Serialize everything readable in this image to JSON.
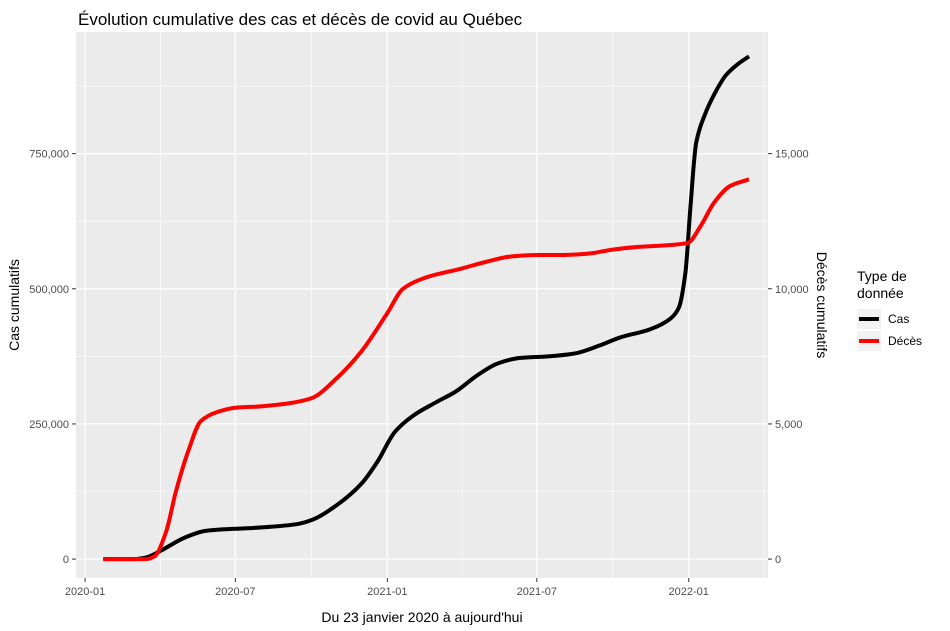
{
  "chart_data": {
    "type": "line",
    "title": "Évolution cumulative des cas et décès de covid au Québec",
    "xlabel": "Du 23 janvier 2020 à aujourd'hui",
    "ylabel": "Cas cumulatifs",
    "ylabel_right": "Décès cumulatifs",
    "x_ticks": [
      "2020-01",
      "2020-07",
      "2021-01",
      "2021-07",
      "2022-01"
    ],
    "y_ticks": [
      "0",
      "250,000",
      "500,000",
      "750,000"
    ],
    "y_right_ticks": [
      "0",
      "5,000",
      "10,000",
      "15,000"
    ],
    "ylim": [
      -35000,
      975000
    ],
    "ylim_right": [
      -700,
      19500
    ],
    "xlim": [
      "2019-12-21",
      "2022-04-07"
    ],
    "grid": true,
    "legend": {
      "title": "Type de donnée",
      "title_lines": [
        "Type de",
        "donnée"
      ],
      "position": "right",
      "entries": [
        "Cas",
        "Décès"
      ]
    },
    "series": [
      {
        "name": "Cas",
        "axis": "left",
        "color": "#000000",
        "points": [
          [
            "2020-01-23",
            0
          ],
          [
            "2020-03-01",
            0
          ],
          [
            "2020-03-15",
            3000
          ],
          [
            "2020-04-01",
            15000
          ],
          [
            "2020-05-01",
            40000
          ],
          [
            "2020-05-25",
            52000
          ],
          [
            "2020-06-15",
            55000
          ],
          [
            "2020-07-15",
            57000
          ],
          [
            "2020-08-15",
            60000
          ],
          [
            "2020-09-15",
            65000
          ],
          [
            "2020-10-01",
            72000
          ],
          [
            "2020-11-01",
            100000
          ],
          [
            "2020-12-01",
            140000
          ],
          [
            "2020-12-20",
            180000
          ],
          [
            "2021-01-10",
            235000
          ],
          [
            "2021-02-01",
            265000
          ],
          [
            "2021-03-01",
            290000
          ],
          [
            "2021-03-25",
            310000
          ],
          [
            "2021-04-20",
            340000
          ],
          [
            "2021-05-15",
            362000
          ],
          [
            "2021-06-10",
            372000
          ],
          [
            "2021-07-15",
            375000
          ],
          [
            "2021-08-15",
            380000
          ],
          [
            "2021-09-15",
            395000
          ],
          [
            "2021-10-10",
            410000
          ],
          [
            "2021-11-15",
            425000
          ],
          [
            "2021-12-10",
            445000
          ],
          [
            "2021-12-20",
            465000
          ],
          [
            "2021-12-28",
            530000
          ],
          [
            "2022-01-03",
            650000
          ],
          [
            "2022-01-10",
            770000
          ],
          [
            "2022-01-20",
            820000
          ],
          [
            "2022-02-01",
            860000
          ],
          [
            "2022-02-15",
            895000
          ],
          [
            "2022-03-01",
            915000
          ],
          [
            "2022-03-15",
            930000
          ]
        ]
      },
      {
        "name": "Décès",
        "axis": "right",
        "color": "#ff0000",
        "points": [
          [
            "2020-01-23",
            0
          ],
          [
            "2020-03-15",
            0
          ],
          [
            "2020-03-25",
            100
          ],
          [
            "2020-04-08",
            1000
          ],
          [
            "2020-04-20",
            2500
          ],
          [
            "2020-05-05",
            4000
          ],
          [
            "2020-05-20",
            5100
          ],
          [
            "2020-06-10",
            5450
          ],
          [
            "2020-07-01",
            5600
          ],
          [
            "2020-08-01",
            5650
          ],
          [
            "2020-09-01",
            5750
          ],
          [
            "2020-10-01",
            5950
          ],
          [
            "2020-11-01",
            6700
          ],
          [
            "2020-12-01",
            7700
          ],
          [
            "2021-01-01",
            9100
          ],
          [
            "2021-01-20",
            10000
          ],
          [
            "2021-02-15",
            10400
          ],
          [
            "2021-04-01",
            10750
          ],
          [
            "2021-05-01",
            11000
          ],
          [
            "2021-06-01",
            11200
          ],
          [
            "2021-07-01",
            11250
          ],
          [
            "2021-08-01",
            11250
          ],
          [
            "2021-09-01",
            11300
          ],
          [
            "2021-10-01",
            11450
          ],
          [
            "2021-11-01",
            11550
          ],
          [
            "2021-12-01",
            11600
          ],
          [
            "2021-12-31",
            11700
          ],
          [
            "2022-01-15",
            12300
          ],
          [
            "2022-02-01",
            13200
          ],
          [
            "2022-02-20",
            13800
          ],
          [
            "2022-03-15",
            14050
          ]
        ]
      }
    ]
  }
}
